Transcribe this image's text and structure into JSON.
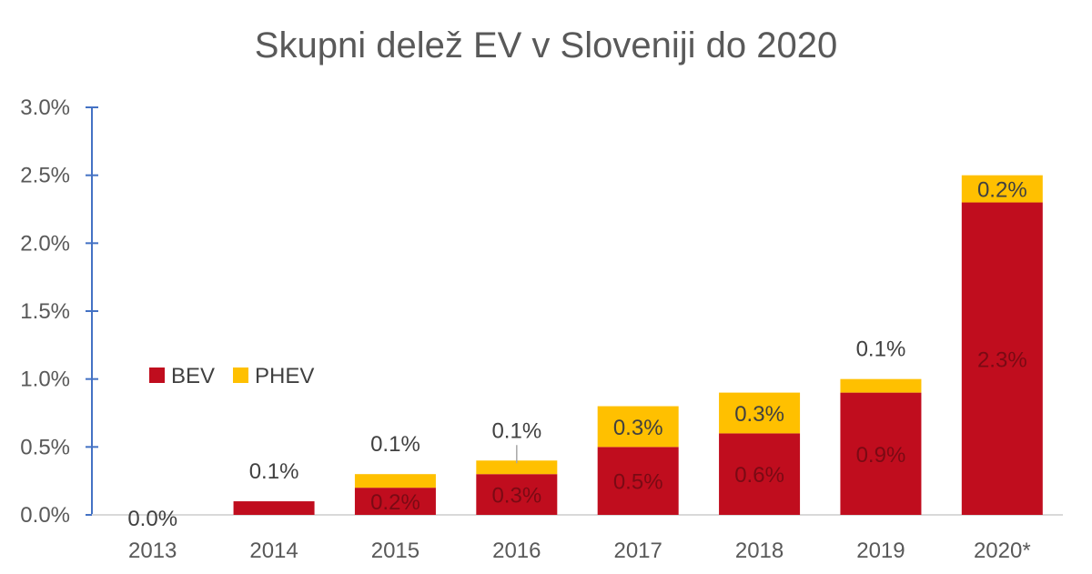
{
  "chart_data": {
    "type": "bar",
    "stacked": true,
    "title": "Skupni delež EV v Sloveniji do 2020",
    "xlabel": "",
    "ylabel": "",
    "categories": [
      "2013",
      "2014",
      "2015",
      "2016",
      "2017",
      "2018",
      "2019",
      "2020*"
    ],
    "ylim": [
      0,
      3.0
    ],
    "yticks": [
      "0.0%",
      "0.5%",
      "1.0%",
      "1.5%",
      "2.0%",
      "2.5%",
      "3.0%"
    ],
    "ytick_values": [
      0,
      0.5,
      1.0,
      1.5,
      2.0,
      2.5,
      3.0
    ],
    "legend_position": "left",
    "grid": false,
    "series": [
      {
        "name": "BEV",
        "color": "#c00d1e",
        "values": [
          0.0,
          0.1,
          0.2,
          0.3,
          0.5,
          0.6,
          0.9,
          2.3
        ],
        "labels": [
          "0.0%",
          "0.1%",
          "0.2%",
          "0.3%",
          "0.5%",
          "0.6%",
          "0.9%",
          "2.3%"
        ]
      },
      {
        "name": "PHEV",
        "color": "#ffc000",
        "values": [
          0.0,
          0.0,
          0.1,
          0.1,
          0.3,
          0.3,
          0.1,
          0.2
        ],
        "labels": [
          "",
          "",
          "0.1%",
          "0.1%",
          "0.3%",
          "0.3%",
          "0.1%",
          "0.2%"
        ]
      }
    ]
  }
}
